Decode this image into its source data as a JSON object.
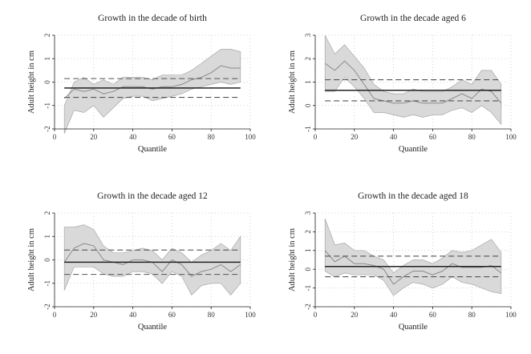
{
  "chart_data": [
    {
      "type": "line",
      "title": "Growth in the decade of birth",
      "xlabel": "Quantile",
      "ylabel": "Adult height in cm",
      "xlim": [
        0,
        100
      ],
      "ylim": [
        -2,
        2
      ],
      "xticks": [
        0,
        20,
        40,
        60,
        80,
        100
      ],
      "yticks": [
        -2,
        -1,
        0,
        1,
        2
      ],
      "grid": true,
      "x": [
        5,
        10,
        15,
        20,
        25,
        30,
        35,
        40,
        45,
        50,
        55,
        60,
        65,
        70,
        75,
        80,
        85,
        90,
        95
      ],
      "estimate": [
        -0.7,
        -0.3,
        -0.4,
        -0.3,
        -0.5,
        -0.4,
        -0.2,
        -0.2,
        -0.2,
        -0.3,
        -0.2,
        -0.2,
        -0.1,
        0.1,
        0.2,
        0.4,
        0.7,
        0.6,
        0.6
      ],
      "ci_lower": [
        -2.2,
        -1.2,
        -1.3,
        -1.0,
        -1.5,
        -1.1,
        -0.7,
        -0.6,
        -0.6,
        -0.8,
        -0.7,
        -0.6,
        -0.5,
        -0.3,
        -0.2,
        -0.1,
        0.0,
        -0.1,
        0.0
      ],
      "ci_upper": [
        -1.0,
        0.0,
        0.2,
        -0.1,
        0.1,
        -0.1,
        0.2,
        0.2,
        0.2,
        0.1,
        0.3,
        0.3,
        0.3,
        0.5,
        0.8,
        1.1,
        1.4,
        1.4,
        1.3
      ],
      "ols_estimate": -0.25,
      "ols_ci": [
        -0.65,
        0.15
      ]
    },
    {
      "type": "line",
      "title": "Growth in the decade aged 6",
      "xlabel": "Quantile",
      "ylabel": "Adult height in cm",
      "xlim": [
        0,
        100
      ],
      "ylim": [
        -1,
        3
      ],
      "xticks": [
        0,
        20,
        40,
        60,
        80,
        100
      ],
      "yticks": [
        -1,
        0,
        1,
        2,
        3
      ],
      "grid": true,
      "x": [
        5,
        10,
        15,
        20,
        25,
        30,
        35,
        40,
        45,
        50,
        55,
        60,
        65,
        70,
        75,
        80,
        85,
        90,
        95
      ],
      "estimate": [
        1.8,
        1.5,
        1.9,
        1.5,
        0.9,
        0.3,
        0.2,
        0.1,
        0.1,
        0.2,
        0.1,
        0.1,
        0.1,
        0.3,
        0.5,
        0.3,
        0.7,
        0.6,
        0.1
      ],
      "ci_lower": [
        0.6,
        0.6,
        1.2,
        0.8,
        0.3,
        -0.3,
        -0.3,
        -0.4,
        -0.5,
        -0.4,
        -0.5,
        -0.4,
        -0.4,
        -0.2,
        -0.1,
        -0.3,
        0.0,
        -0.3,
        -0.8
      ],
      "ci_upper": [
        3.0,
        2.2,
        2.6,
        2.1,
        1.6,
        0.9,
        0.6,
        0.5,
        0.5,
        0.7,
        0.6,
        0.6,
        0.6,
        0.8,
        1.1,
        0.9,
        1.5,
        1.5,
        0.9
      ],
      "ols_estimate": 0.65,
      "ols_ci": [
        0.2,
        1.1
      ]
    },
    {
      "type": "line",
      "title": "Growth in the decade aged 12",
      "xlabel": "Quantile",
      "ylabel": "Adult height in cm",
      "xlim": [
        0,
        100
      ],
      "ylim": [
        -2,
        2
      ],
      "xticks": [
        0,
        20,
        40,
        60,
        80,
        100
      ],
      "yticks": [
        -2,
        -1,
        0,
        1,
        2
      ],
      "grid": true,
      "x": [
        5,
        10,
        15,
        20,
        25,
        30,
        35,
        40,
        45,
        50,
        55,
        60,
        65,
        70,
        75,
        80,
        85,
        90,
        95
      ],
      "estimate": [
        -0.1,
        0.5,
        0.7,
        0.6,
        0.0,
        -0.1,
        -0.2,
        0.0,
        0.0,
        -0.1,
        -0.5,
        0.0,
        -0.2,
        -0.7,
        -0.5,
        -0.4,
        -0.2,
        -0.5,
        -0.2
      ],
      "ci_lower": [
        -1.3,
        -0.3,
        -0.3,
        -0.3,
        -0.6,
        -0.7,
        -0.7,
        -0.5,
        -0.5,
        -0.6,
        -1.0,
        -0.5,
        -0.7,
        -1.5,
        -1.1,
        -1.0,
        -1.0,
        -1.5,
        -1.0
      ],
      "ci_upper": [
        1.4,
        1.4,
        1.5,
        1.3,
        0.6,
        0.3,
        0.3,
        0.4,
        0.5,
        0.4,
        0.0,
        0.5,
        0.3,
        -0.1,
        0.2,
        0.4,
        0.7,
        0.4,
        1.0
      ],
      "ols_estimate": -0.1,
      "ols_ci": [
        -0.62,
        0.42
      ]
    },
    {
      "type": "line",
      "title": "Growth in the decade aged 18",
      "xlabel": "Quantile",
      "ylabel": "Adult height in cm",
      "xlim": [
        0,
        100
      ],
      "ylim": [
        -2,
        3
      ],
      "xticks": [
        0,
        20,
        40,
        60,
        80,
        100
      ],
      "yticks": [
        -2,
        -1,
        0,
        1,
        2,
        3
      ],
      "grid": true,
      "x": [
        5,
        10,
        15,
        20,
        25,
        30,
        35,
        40,
        45,
        50,
        55,
        60,
        65,
        70,
        75,
        80,
        85,
        90,
        95
      ],
      "estimate": [
        1.0,
        0.4,
        0.7,
        0.3,
        0.3,
        0.2,
        0.0,
        -0.8,
        -0.4,
        -0.1,
        -0.1,
        -0.3,
        -0.1,
        0.3,
        0.1,
        0.1,
        0.1,
        0.2,
        -0.2
      ],
      "ci_lower": [
        -0.1,
        -0.4,
        -0.2,
        -0.3,
        -0.3,
        -0.3,
        -0.6,
        -1.4,
        -1.0,
        -0.7,
        -0.8,
        -1.0,
        -0.8,
        -0.4,
        -0.7,
        -0.8,
        -1.0,
        -1.2,
        -1.3
      ],
      "ci_upper": [
        2.7,
        1.3,
        1.4,
        1.0,
        1.0,
        0.7,
        0.5,
        -0.2,
        0.2,
        0.5,
        0.5,
        0.3,
        0.6,
        1.0,
        0.9,
        1.0,
        1.3,
        1.6,
        0.9
      ],
      "ols_estimate": 0.15,
      "ols_ci": [
        -0.4,
        0.7
      ]
    }
  ]
}
